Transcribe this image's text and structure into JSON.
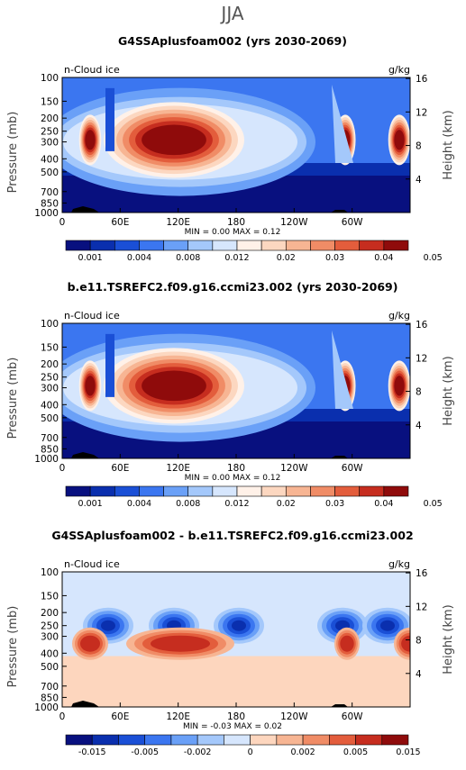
{
  "figure": {
    "season": "JJA"
  },
  "chart_data": [
    {
      "type": "heatmap",
      "title": "G4SSAplusfoam002 (yrs 2030-2069)",
      "field_label": "n-Cloud ice",
      "units": "g/kg",
      "ylabel": "Pressure (mb)",
      "ylabel2": "Height (km)",
      "y_ticks": [
        100,
        150,
        200,
        250,
        300,
        400,
        500,
        700,
        850,
        1000
      ],
      "y2_ticks": [
        4,
        8,
        12,
        16
      ],
      "x_ticks": [
        "0",
        "60E",
        "120E",
        "180",
        "120W",
        "60W"
      ],
      "stats": "MIN =    0.00   MAX =    0.12",
      "colorbar": {
        "labels": [
          "0.001",
          "0.004",
          "0.008",
          "0.012",
          "0.02",
          "0.03",
          "0.04",
          "0.05"
        ],
        "colors": [
          "#08107f",
          "#0a2fae",
          "#1a4fd6",
          "#3b76f0",
          "#6aa0f7",
          "#a4c8fb",
          "#d6e6fd",
          "#fff1e8",
          "#fcd7c0",
          "#f7b593",
          "#f08c66",
          "#e35d3c",
          "#c62d1f",
          "#8f0b0b"
        ]
      }
    },
    {
      "type": "heatmap",
      "title": "b.e11.TSREFC2.f09.g16.ccmi23.002 (yrs 2030-2069)",
      "field_label": "n-Cloud ice",
      "units": "g/kg",
      "ylabel": "Pressure (mb)",
      "ylabel2": "Height (km)",
      "y_ticks": [
        100,
        150,
        200,
        250,
        300,
        400,
        500,
        700,
        850,
        1000
      ],
      "y2_ticks": [
        4,
        8,
        12,
        16
      ],
      "x_ticks": [
        "0",
        "60E",
        "120E",
        "180",
        "120W",
        "60W"
      ],
      "stats": "MIN =    0.00   MAX =    0.12",
      "colorbar": {
        "labels": [
          "0.001",
          "0.004",
          "0.008",
          "0.012",
          "0.02",
          "0.03",
          "0.04",
          "0.05"
        ],
        "colors": [
          "#08107f",
          "#0a2fae",
          "#1a4fd6",
          "#3b76f0",
          "#6aa0f7",
          "#a4c8fb",
          "#d6e6fd",
          "#fff1e8",
          "#fcd7c0",
          "#f7b593",
          "#f08c66",
          "#e35d3c",
          "#c62d1f",
          "#8f0b0b"
        ]
      }
    },
    {
      "type": "heatmap",
      "title": "G4SSAplusfoam002 - b.e11.TSREFC2.f09.g16.ccmi23.002",
      "field_label": "n-Cloud ice",
      "units": "g/kg",
      "ylabel": "Pressure (mb)",
      "ylabel2": "Height (km)",
      "y_ticks": [
        100,
        150,
        200,
        250,
        300,
        400,
        500,
        700,
        850,
        1000
      ],
      "y2_ticks": [
        4,
        8,
        12,
        16
      ],
      "x_ticks": [
        "0",
        "60E",
        "120E",
        "180",
        "120W",
        "60W"
      ],
      "stats": "MIN =   -0.03   MAX =    0.02",
      "colorbar": {
        "labels": [
          "-0.015",
          "-0.005",
          "-0.002",
          "0",
          "0.002",
          "0.005",
          "0.015"
        ],
        "colors": [
          "#08107f",
          "#0a2fae",
          "#1a4fd6",
          "#3b76f0",
          "#6aa0f7",
          "#a4c8fb",
          "#d6e6fd",
          "#fdd6be",
          "#f7b593",
          "#f08c66",
          "#e35d3c",
          "#c62d1f",
          "#8f0b0b"
        ]
      }
    }
  ]
}
